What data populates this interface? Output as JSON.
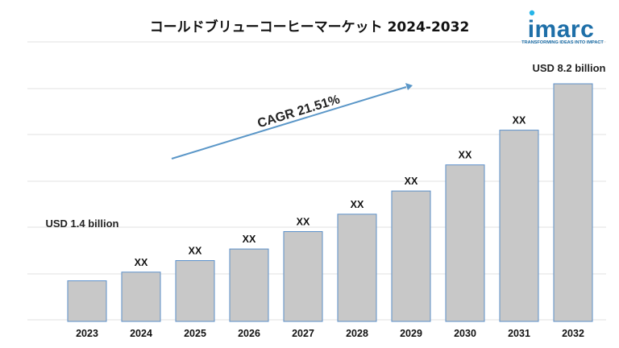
{
  "brand": {
    "name": "imarc",
    "tagline": "TRANSFORMING IDEAS INTO IMPACT",
    "color": "#1e6fa8",
    "accent": "#26b5e8"
  },
  "chart_data": {
    "type": "bar",
    "title": "コールドブリューコーヒーマーケット 2024-2032",
    "categories": [
      "2023",
      "2024",
      "2025",
      "2026",
      "2027",
      "2028",
      "2029",
      "2030",
      "2031",
      "2032"
    ],
    "values": [
      1.4,
      1.7,
      2.1,
      2.5,
      3.1,
      3.7,
      4.5,
      5.4,
      6.6,
      8.2
    ],
    "data_labels": [
      "",
      "XX",
      "XX",
      "XX",
      "XX",
      "XX",
      "XX",
      "XX",
      "XX",
      ""
    ],
    "callouts": {
      "first": "USD 1.4 billion",
      "last": "USD 8.2 billion"
    },
    "cagr": "CAGR 21.51%",
    "bar_color": "#c8c8c8",
    "bar_edge_color": "#5b8fc9",
    "arrow_color": "#5b97c8",
    "grid": true,
    "legend": "none",
    "xlabel": "",
    "ylabel": ""
  }
}
